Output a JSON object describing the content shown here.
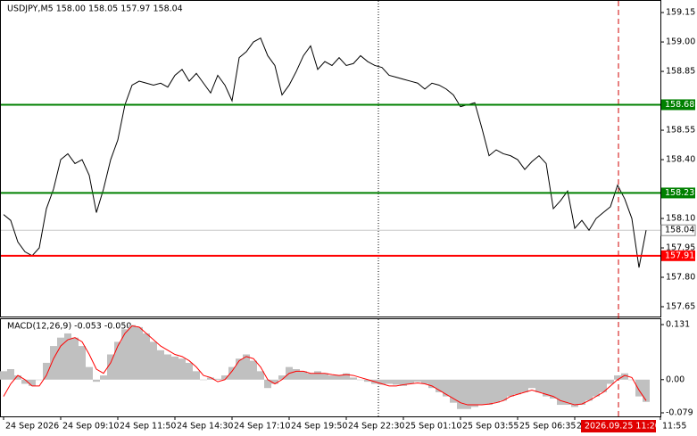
{
  "chart_data": [
    {
      "type": "line",
      "title": "USDJPY,M5  158.00 158.05 157.97 158.04",
      "categories": [
        "24 Sep 2026",
        null,
        null,
        null,
        null,
        null,
        null,
        null,
        "24 Sep 09:10",
        null,
        null,
        null,
        null,
        null,
        null,
        null,
        "24 Sep 11:50",
        null,
        null,
        null,
        null,
        null,
        null,
        null,
        "24 Sep 14:30",
        null,
        null,
        null,
        null,
        null,
        null,
        null,
        "24 Sep 17:10",
        null,
        null,
        null,
        null,
        null,
        null,
        null,
        "24 Sep 19:50",
        null,
        null,
        null,
        null,
        null,
        null,
        null,
        "24 Sep 22:30",
        null,
        null,
        null,
        null,
        null,
        null,
        null,
        "25 Sep 01:10",
        null,
        null,
        null,
        null,
        null,
        null,
        null,
        "25 Sep 03:55",
        null,
        null,
        null,
        null,
        null,
        null,
        null,
        "25 Sep 06:35",
        null,
        null,
        null,
        null,
        null,
        null,
        null,
        "25",
        null,
        null,
        null,
        null,
        null,
        null,
        null,
        null,
        null,
        null,
        null,
        "11:55"
      ],
      "series": [
        {
          "color": "#000000",
          "values": [
            158.12,
            158.09,
            157.98,
            157.93,
            157.91,
            157.95,
            158.15,
            158.25,
            158.4,
            158.43,
            158.38,
            158.4,
            158.32,
            158.13,
            158.25,
            158.4,
            158.5,
            158.68,
            158.78,
            158.8,
            158.79,
            158.78,
            158.79,
            158.77,
            158.83,
            158.86,
            158.8,
            158.84,
            158.79,
            158.74,
            158.83,
            158.78,
            158.7,
            158.92,
            158.95,
            159.0,
            159.02,
            158.93,
            158.88,
            158.73,
            158.78,
            158.85,
            158.93,
            158.98,
            158.86,
            158.9,
            158.88,
            158.92,
            158.88,
            158.89,
            158.93,
            158.9,
            158.88,
            158.87,
            158.83,
            158.82,
            158.81,
            158.8,
            158.79,
            158.76,
            158.79,
            158.78,
            158.76,
            158.73,
            158.67,
            158.68,
            158.69,
            158.56,
            158.42,
            158.45,
            158.43,
            158.42,
            158.4,
            158.35,
            158.39,
            158.42,
            158.38,
            158.15,
            158.19,
            158.24,
            158.05,
            158.09,
            158.04,
            158.1,
            158.13,
            158.16,
            158.27,
            158.2,
            158.1,
            157.85,
            158.04,
            null,
            null
          ]
        }
      ],
      "ylim": [
        157.6,
        159.214
      ],
      "yticks": [
        157.65,
        {
          "value": 157.8,
          "label": "157.80"
        },
        157.95,
        {
          "value": 158.1,
          "label": "158.10"
        },
        {
          "value": 158.4,
          "label": "158.40"
        },
        158.55,
        158.85,
        {
          "value": 159,
          "label": "159.00"
        },
        159.15
      ],
      "levels": [
        {
          "value": 158.68,
          "color": "#008000"
        },
        {
          "value": 158.23,
          "color": "#008000"
        },
        {
          "value": 157.91,
          "color": "#ff0000"
        }
      ],
      "last_price": 158.04,
      "cursor_label": "2026.09.25 11:20"
    },
    {
      "type": "macd",
      "title": "MACD(12,26,9) -0.053 -0.050",
      "series": [
        {
          "color": "#c0c0c0",
          "values": [
            0.02,
            0.025,
            0.01,
            -0.01,
            -0.015,
            0.0,
            0.04,
            0.08,
            0.1,
            0.11,
            0.1,
            0.08,
            0.03,
            -0.005,
            0.01,
            0.06,
            0.09,
            0.12,
            0.13,
            0.125,
            0.11,
            0.09,
            0.07,
            0.06,
            0.055,
            0.05,
            0.04,
            0.02,
            0.0,
            0.005,
            0.002,
            0.01,
            0.03,
            0.05,
            0.06,
            0.045,
            0.02,
            -0.02,
            -0.01,
            0.01,
            0.03,
            0.025,
            0.02,
            0.015,
            0.02,
            0.015,
            0.01,
            0.01,
            0.015,
            0.005,
            0.0,
            -0.005,
            -0.01,
            -0.012,
            -0.01,
            -0.012,
            -0.015,
            -0.01,
            -0.005,
            -0.01,
            -0.02,
            -0.03,
            -0.04,
            -0.055,
            -0.07,
            -0.07,
            -0.065,
            -0.06,
            -0.06,
            -0.055,
            -0.05,
            -0.04,
            -0.035,
            -0.03,
            -0.02,
            -0.03,
            -0.04,
            -0.045,
            -0.06,
            -0.06,
            -0.065,
            -0.06,
            -0.05,
            -0.04,
            -0.03,
            -0.01,
            0.01,
            0.015,
            0.0,
            -0.04,
            -0.053,
            null,
            null
          ]
        },
        {
          "color": "#ff0000",
          "values": [
            -0.04,
            -0.01,
            0.01,
            0.0,
            -0.015,
            -0.015,
            0.01,
            0.05,
            0.08,
            0.095,
            0.1,
            0.09,
            0.06,
            0.025,
            0.015,
            0.04,
            0.08,
            0.11,
            0.128,
            0.125,
            0.11,
            0.095,
            0.08,
            0.07,
            0.06,
            0.055,
            0.045,
            0.03,
            0.01,
            0.005,
            -0.005,
            0.0,
            0.02,
            0.045,
            0.055,
            0.05,
            0.03,
            0.0,
            -0.01,
            0.0,
            0.015,
            0.02,
            0.02,
            0.015,
            0.015,
            0.015,
            0.012,
            0.01,
            0.012,
            0.01,
            0.005,
            0.0,
            -0.005,
            -0.01,
            -0.015,
            -0.015,
            -0.012,
            -0.01,
            -0.008,
            -0.01,
            -0.015,
            -0.025,
            -0.035,
            -0.045,
            -0.055,
            -0.06,
            -0.06,
            -0.06,
            -0.058,
            -0.055,
            -0.05,
            -0.04,
            -0.035,
            -0.03,
            -0.025,
            -0.03,
            -0.035,
            -0.04,
            -0.05,
            -0.055,
            -0.06,
            -0.058,
            -0.05,
            -0.04,
            -0.03,
            -0.015,
            0.0,
            0.01,
            0.005,
            -0.025,
            -0.05,
            null,
            null
          ]
        }
      ],
      "ylim": [
        -0.0875,
        0.146
      ],
      "yticks": [
        -0.079,
        {
          "value": 0,
          "label": "0.00"
        },
        0.131
      ]
    }
  ]
}
